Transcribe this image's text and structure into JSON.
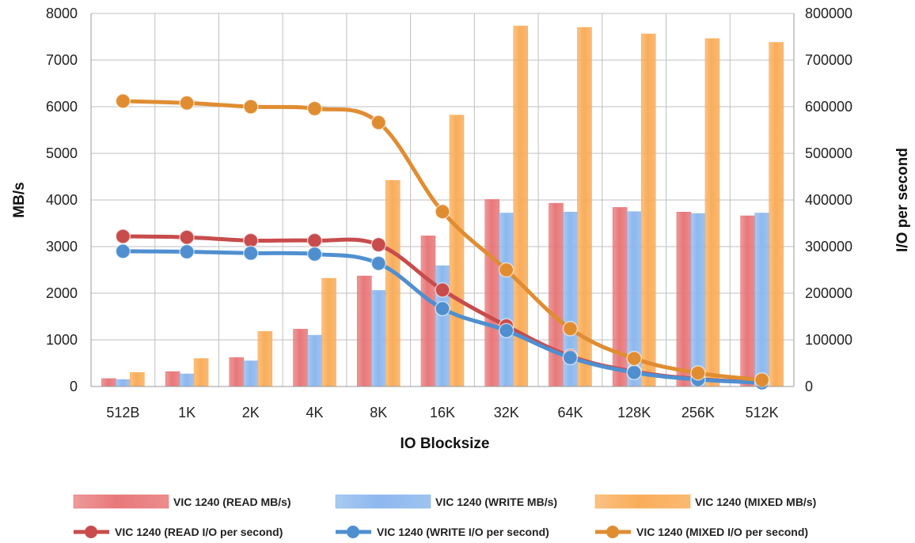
{
  "chart_data": {
    "type": "bar",
    "xlabel": "IO Blocksize",
    "ylabel": "MB/s",
    "y2label": "I/O per second",
    "ylim": [
      0,
      8000
    ],
    "y2lim": [
      0,
      800000
    ],
    "y_ticks": [
      "0",
      "1000",
      "2000",
      "3000",
      "4000",
      "5000",
      "6000",
      "7000",
      "8000"
    ],
    "y2_ticks": [
      "0",
      "100000",
      "200000",
      "300000",
      "400000",
      "500000",
      "600000",
      "700000",
      "800000"
    ],
    "grid": true,
    "legend_position": "bottom",
    "categories": [
      "512B",
      "1K",
      "2K",
      "4K",
      "8K",
      "16K",
      "32K",
      "64K",
      "128K",
      "256K",
      "512K"
    ],
    "bar_series": [
      {
        "name": "VIC 1240 (READ MB/s)",
        "color": "#e8787a",
        "values": [
          170,
          320,
          620,
          1230,
          2370,
          3230,
          4010,
          3930,
          3840,
          3740,
          3660
        ]
      },
      {
        "name": "VIC 1240 (WRITE MB/s)",
        "color": "#8db8ee",
        "values": [
          150,
          270,
          550,
          1100,
          2060,
          2590,
          3720,
          3740,
          3750,
          3710,
          3720
        ]
      },
      {
        "name": "VIC 1240 (MIXED MB/s)",
        "color": "#f9ad5a",
        "values": [
          300,
          600,
          1180,
          2320,
          4420,
          5820,
          7730,
          7700,
          7560,
          7460,
          7380
        ]
      }
    ],
    "line_series": [
      {
        "name": "VIC 1240 (READ I/O per second)",
        "color": "#c84c4c",
        "values": [
          322000,
          320000,
          313000,
          313000,
          304000,
          207000,
          130000,
          65000,
          32000,
          16000,
          9000
        ]
      },
      {
        "name": "VIC 1240 (WRITE I/O per second)",
        "color": "#4f8fd0",
        "values": [
          290000,
          289000,
          286000,
          284000,
          264000,
          167000,
          120000,
          62000,
          30000,
          15000,
          8000
        ]
      },
      {
        "name": "VIC 1240 (MIXED I/O per second)",
        "color": "#e08d32",
        "values": [
          612000,
          608000,
          600000,
          596000,
          566000,
          375000,
          250000,
          124000,
          60000,
          29000,
          14000
        ]
      }
    ]
  }
}
